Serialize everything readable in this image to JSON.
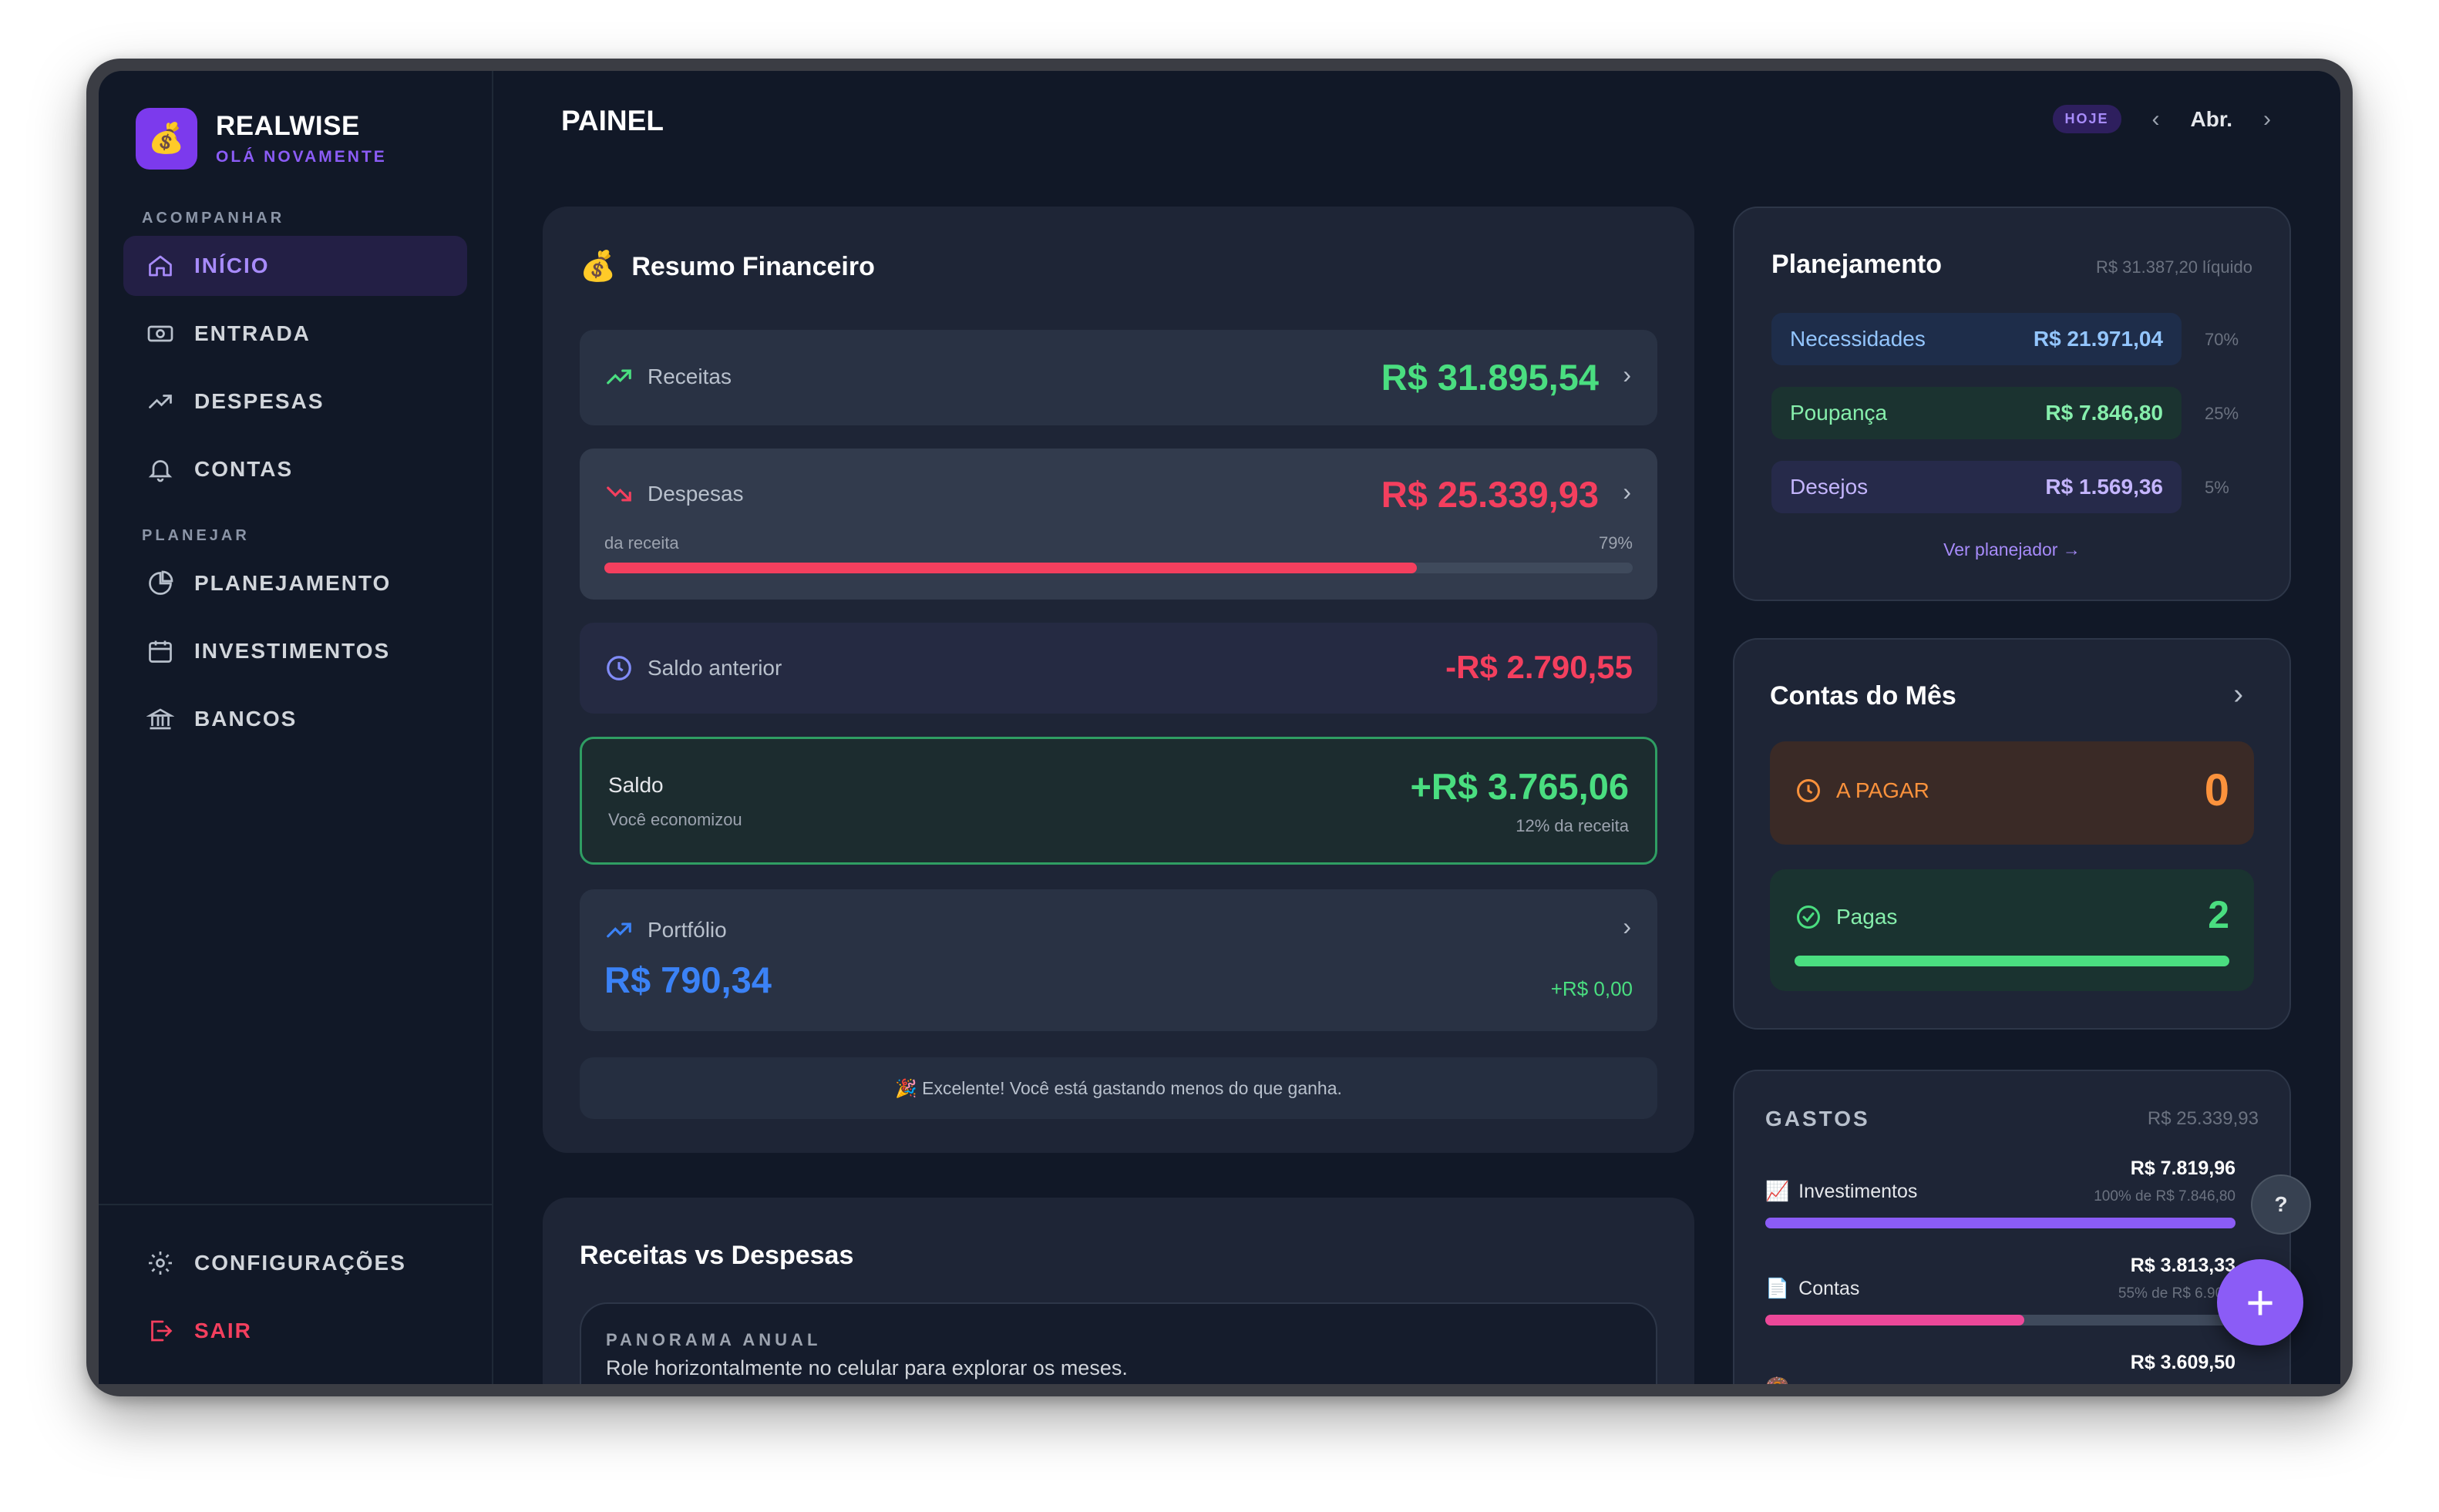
{
  "brand": {
    "name": "REALWISE",
    "subtitle": "OLÁ NOVAMENTE",
    "logo_icon": "money-bag-icon"
  },
  "sidebar": {
    "sections": {
      "track": "ACOMPANHAR",
      "plan": "PLANEJAR"
    },
    "items": [
      {
        "label": "INÍCIO",
        "icon": "home-icon",
        "active": true
      },
      {
        "label": "ENTRADA",
        "icon": "cash-icon"
      },
      {
        "label": "DESPESAS",
        "icon": "trend-up-icon"
      },
      {
        "label": "CONTAS",
        "icon": "bell-icon"
      },
      {
        "label": "PLANEJAMENTO",
        "icon": "pie-chart-icon"
      },
      {
        "label": "INVESTIMENTOS",
        "icon": "calendar-icon"
      },
      {
        "label": "BANCOS",
        "icon": "bank-icon"
      }
    ],
    "footer": [
      {
        "label": "CONFIGURAÇÕES",
        "icon": "gear-icon"
      },
      {
        "label": "SAIR",
        "icon": "logout-icon"
      }
    ]
  },
  "header": {
    "title": "PAINEL",
    "today": "HOJE",
    "month": "Abr.",
    "prev": "‹",
    "next": "›"
  },
  "summary": {
    "emoji": "💰",
    "title": "Resumo Financeiro",
    "income": {
      "label": "Receitas",
      "value": "R$ 31.895,54"
    },
    "expenses": {
      "label": "Despesas",
      "value": "R$ 25.339,93",
      "sublabel": "da receita",
      "percent_text": "79%",
      "percent": 79
    },
    "previous": {
      "label": "Saldo anterior",
      "value": "-R$ 2.790,55"
    },
    "balance": {
      "label": "Saldo",
      "sub": "Você economizou",
      "value": "+R$ 3.765,06",
      "note": "12% da receita"
    },
    "portfolio": {
      "label": "Portfólio",
      "value": "R$ 790,34",
      "delta": "+R$ 0,00"
    },
    "message": "🎉 Excelente! Você está gastando menos do que ganha."
  },
  "chart_section": {
    "title": "Receitas vs Despesas",
    "kicker": "PANORAMA ANUAL",
    "hint": "Role horizontalmente no celular para explorar os meses."
  },
  "planning": {
    "title": "Planejamento",
    "net": "R$ 31.387,20 líquido",
    "rows": [
      {
        "label": "Necessidades",
        "value": "R$ 21.971,04",
        "pct": "70%",
        "color": "#93c5fd",
        "bg": "#1e2d4a"
      },
      {
        "label": "Poupança",
        "value": "R$ 7.846,80",
        "pct": "25%",
        "color": "#86efac",
        "bg": "#1b3330"
      },
      {
        "label": "Desejos",
        "value": "R$ 1.569,36",
        "pct": "5%",
        "color": "#c4b5fd",
        "bg": "#262a4a"
      }
    ],
    "link": "Ver planejador →"
  },
  "bills": {
    "title": "Contas do Mês",
    "to_pay": {
      "label": "A PAGAR",
      "count": "0"
    },
    "paid": {
      "label": "Pagas",
      "count": "2",
      "progress": 100
    }
  },
  "spending": {
    "title": "GASTOS",
    "total": "R$ 25.339,93",
    "items": [
      {
        "emoji": "📈",
        "label": "Investimentos",
        "value": "R$ 7.819,96",
        "note": "100% de R$ 7.846,80",
        "fill": 100,
        "color": "#8b5cf6"
      },
      {
        "emoji": "📄",
        "label": "Contas",
        "value": "R$ 3.813,33",
        "note": "55% de R$ 6.905,",
        "fill": 55,
        "color": "#ec4899"
      },
      {
        "emoji": "🍩",
        "label": "",
        "value": "R$ 3.609,50",
        "note": "",
        "fill": 0,
        "color": "#f59e0b"
      }
    ]
  },
  "fab": {
    "label": "+"
  },
  "help": {
    "label": "?"
  },
  "colors": {
    "accent": "#8b5cf6",
    "income": "#4ade80",
    "expense": "#f43f5e",
    "portfolio": "#3b82f6",
    "background": "#111827",
    "card": "#1e2536"
  }
}
